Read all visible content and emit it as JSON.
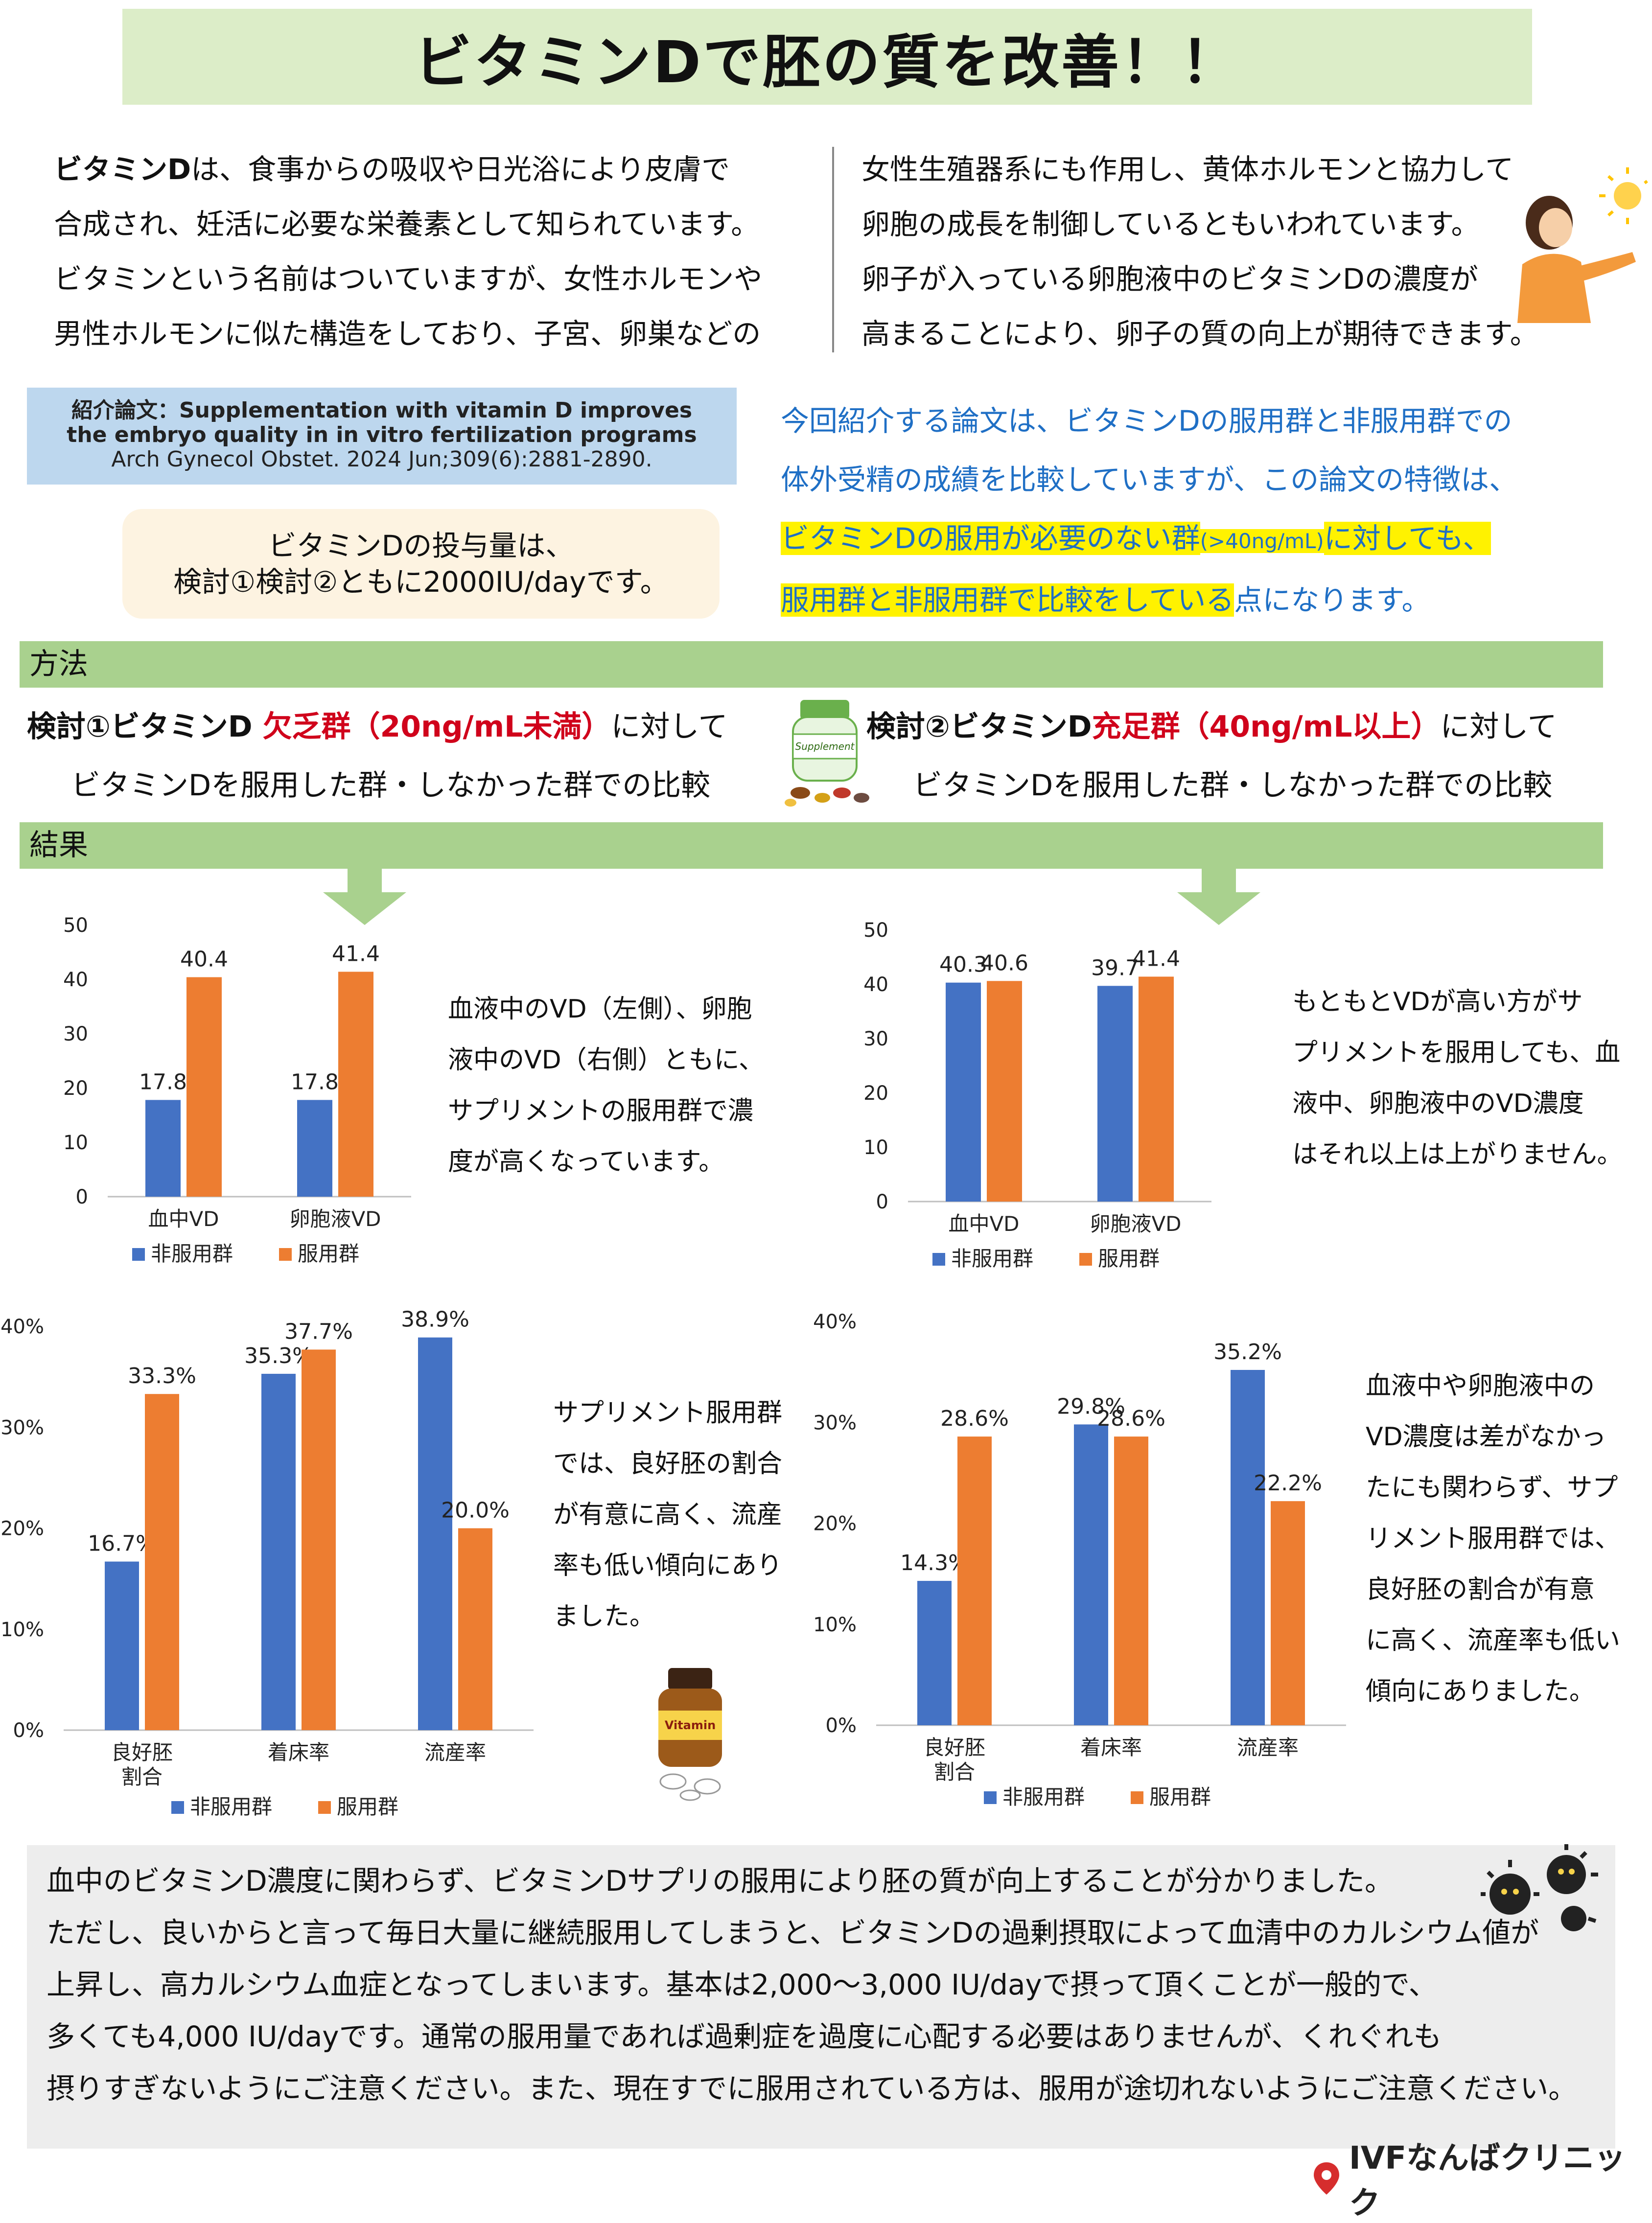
{
  "title": "ビタミンDで胚の質を改善！！",
  "intro_left": {
    "bold": "ビタミンD",
    "lines": [
      "は、食事からの吸収や日光浴により皮膚で",
      "合成され、妊活に必要な栄養素として知られています。",
      "ビタミンという名前はついていますが、女性ホルモンや",
      "男性ホルモンに似た構造をしており、子宮、卵巣などの"
    ]
  },
  "intro_right": {
    "lines": [
      "女性生殖器系にも作用し、黄体ホルモンと協力して",
      "卵胞の成長を制御しているともいわれています。",
      "卵子が入っている卵胞液中のビタミンDの濃度が",
      "高まることにより、卵子の質の向上が期待できます。"
    ]
  },
  "paper": {
    "label_line1": "紹介論文：Supplementation with vitamin D improves",
    "label_line2": "the embryo quality in in vitro fertilization  programs",
    "citation": "Arch Gynecol Obstet. 2024 Jun;309(6):2881-2890."
  },
  "dose": {
    "line1": "ビタミンDの投与量は、",
    "line2": "検討①検討②ともに2000IU/dayです。"
  },
  "feature": {
    "line1": "今回紹介する論文は、ビタミンDの服用群と非服用群での",
    "line2": "体外受精の成績を比較していますが、この論文の特徴は、",
    "line3_hl_a": "ビタミンDの服用が必要のない群",
    "line3_hl_b": "(>40ng/mL)",
    "line3_hl_c": "に対しても、",
    "line4_hl": "服用群と非服用群で比較をしている",
    "line4_rest": "点になります。"
  },
  "sections": {
    "method": "方法",
    "results": "結果"
  },
  "study1": {
    "prefix": "検討①ビタミンD ",
    "red": "欠乏群（20ng/mL未満）",
    "suffix": "に対して",
    "line2": "ビタミンDを服用した群・しなかった群での比較"
  },
  "study2": {
    "prefix": "検討②ビタミンD",
    "red": "充足群（40ng/mL以上）",
    "suffix": "に対して",
    "line2": "ビタミンDを服用した群・しなかった群での比較"
  },
  "bottle_label": "Supplement",
  "vitamin_label": "Vitamin",
  "notes": {
    "chart1": [
      "血液中のVD（左側）、卵胞",
      "液中のVD（右側）ともに、",
      "サプリメントの服用群で濃",
      "度が高くなっています。"
    ],
    "chart2": [
      "もともとVDが高い方がサ",
      "プリメントを服用しても、血",
      "液中、卵胞液中のVD濃度",
      "はそれ以上は上がりません。"
    ],
    "chart3": [
      "サプリメント服用群",
      "では、良好胚の割合",
      "が有意に高く、流産",
      "率も低い傾向にあり",
      "ました。"
    ],
    "chart4": [
      "血液中や卵胞液中の",
      "VD濃度は差がなかっ",
      "たにも関わらず、サプ",
      "リメント服用群では、",
      "良好胚の割合が有意",
      "に高く、流産率も低い",
      "傾向にありました。"
    ]
  },
  "legend": {
    "non": "非服用群",
    "taking": "服用群"
  },
  "colors": {
    "non": "#4472c4",
    "taking": "#ed7d31",
    "section": "#a9d18e",
    "title_bg": "#dcedc8"
  },
  "chart_data": [
    {
      "type": "bar",
      "categories": [
        "血中VD",
        "卵胞液VD"
      ],
      "series": [
        {
          "name": "非服用群",
          "values": [
            17.8,
            17.8
          ]
        },
        {
          "name": "服用群",
          "values": [
            40.4,
            41.4
          ]
        }
      ],
      "ylim": [
        0,
        50
      ],
      "yticks": [
        "0",
        "10",
        "20",
        "30",
        "40",
        "50"
      ],
      "labels": [
        [
          "17.8",
          "17.8"
        ],
        [
          "40.4",
          "41.4"
        ]
      ],
      "legend": "bottom"
    },
    {
      "type": "bar",
      "categories": [
        "血中VD",
        "卵胞液VD"
      ],
      "series": [
        {
          "name": "非服用群",
          "values": [
            40.3,
            39.7
          ]
        },
        {
          "name": "服用群",
          "values": [
            40.6,
            41.4
          ]
        }
      ],
      "ylim": [
        0,
        50
      ],
      "yticks": [
        "0",
        "10",
        "20",
        "30",
        "40",
        "50"
      ],
      "labels": [
        [
          "40.3",
          "39.7"
        ],
        [
          "40.6",
          "41.4"
        ]
      ],
      "legend": "bottom"
    },
    {
      "type": "bar",
      "categories": [
        "良好胚\n割合",
        "着床率",
        "流産率"
      ],
      "series": [
        {
          "name": "非服用群",
          "values": [
            16.7,
            35.3,
            38.9
          ]
        },
        {
          "name": "服用群",
          "values": [
            33.3,
            37.7,
            20.0
          ]
        }
      ],
      "ylim": [
        0,
        40
      ],
      "yticks": [
        "0%",
        "10%",
        "20%",
        "30%",
        "40%"
      ],
      "labels": [
        [
          "16.7%",
          "35.3%",
          "38.9%"
        ],
        [
          "33.3%",
          "37.7%",
          "20.0%"
        ]
      ],
      "legend": "bottom"
    },
    {
      "type": "bar",
      "categories": [
        "良好胚\n割合",
        "着床率",
        "流産率"
      ],
      "series": [
        {
          "name": "非服用群",
          "values": [
            14.3,
            29.8,
            35.2
          ]
        },
        {
          "name": "服用群",
          "values": [
            28.6,
            28.6,
            22.2
          ]
        }
      ],
      "ylim": [
        0,
        40
      ],
      "yticks": [
        "0%",
        "10%",
        "20%",
        "30%",
        "40%"
      ],
      "labels": [
        [
          "14.3%",
          "29.8%",
          "35.2%"
        ],
        [
          "28.6%",
          "28.6%",
          "22.2%"
        ]
      ],
      "legend": "bottom"
    }
  ],
  "conclusion": [
    "血中のビタミンD濃度に関わらず、ビタミンDサプリの服用により胚の質が向上することが分かりました。",
    "ただし、良いからと言って毎日大量に継続服用してしまうと、ビタミンDの過剰摂取によって血清中のカルシウム値が",
    "上昇し、高カルシウム血症となってしまいます。基本は2,000～3,000 IU/dayで摂って頂くことが一般的で、",
    "多くても4,000 IU/dayです。通常の服用量であれば過剰症を過度に心配する必要はありませんが、くれぐれも",
    "摂りすぎないようにご注意ください。また、現在すでに服用されている方は、服用が途切れないようにご注意ください。"
  ],
  "logo": "IVFなんばクリニック"
}
